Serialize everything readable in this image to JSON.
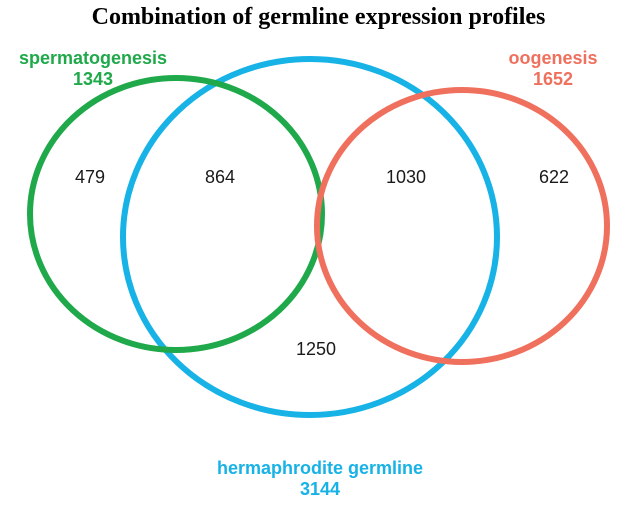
{
  "title": "Combination of germline expression profiles",
  "sets": {
    "spermatogenesis": {
      "name": "spermatogenesis",
      "total": "1343",
      "color": "#1fa94a"
    },
    "oogenesis": {
      "name": "oogenesis",
      "total": "1652",
      "color": "#f0705e"
    },
    "hermaphrodite": {
      "name": "hermaphrodite germline",
      "total": "3144",
      "color": "#17b2e6"
    }
  },
  "regions": {
    "spermatogenesis_only": "479",
    "spermatogenesis_hermaphrodite": "864",
    "oogenesis_hermaphrodite": "1030",
    "oogenesis_only": "622",
    "hermaphrodite_only": "1250"
  }
}
